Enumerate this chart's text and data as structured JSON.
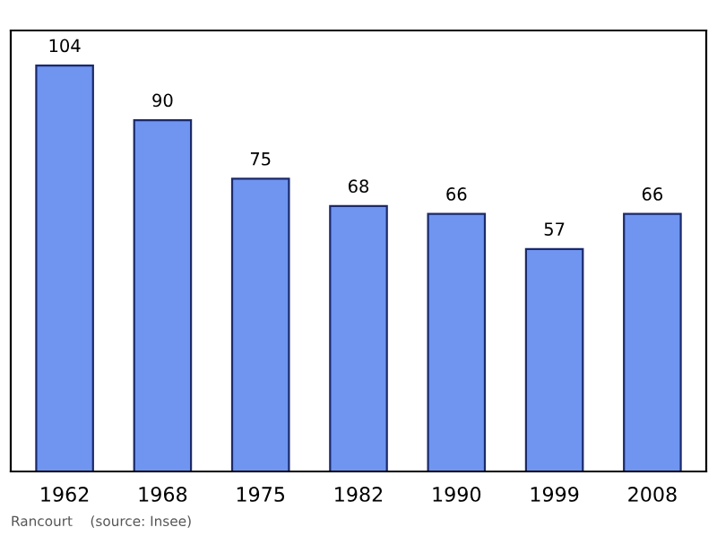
{
  "chart_data": {
    "type": "bar",
    "categories": [
      "1962",
      "1968",
      "1975",
      "1982",
      "1990",
      "1999",
      "2008"
    ],
    "values": [
      104,
      90,
      75,
      68,
      66,
      57,
      66
    ],
    "color": "#6f95f0",
    "ylim": [
      0,
      113
    ],
    "data_labels": true,
    "grid": false,
    "legend": false,
    "annotations": [
      "Rancourt    (source: Insee)"
    ]
  }
}
